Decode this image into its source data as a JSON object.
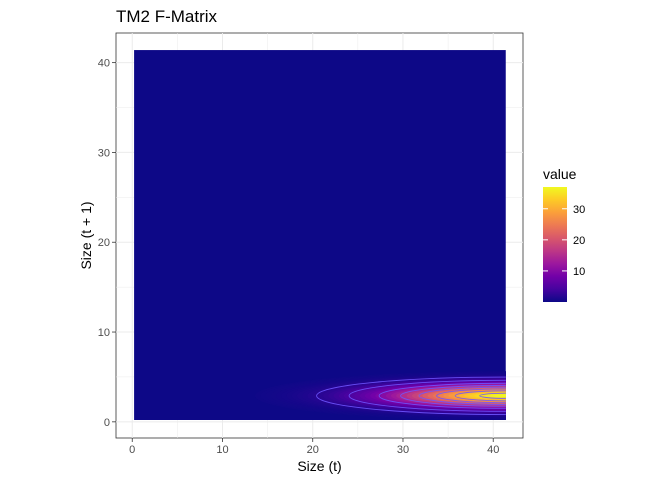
{
  "chart_data": {
    "type": "heatmap",
    "title": "TM2 F-Matrix",
    "xlabel": "Size (t)",
    "ylabel": "Size (t + 1)",
    "xlim": [
      -1.8,
      43.3
    ],
    "ylim": [
      -1.8,
      43.3
    ],
    "x_ticks": [
      0,
      10,
      20,
      30,
      40
    ],
    "y_ticks": [
      0,
      10,
      20,
      30,
      40
    ],
    "grid": true,
    "data_extent": {
      "x": [
        0.2,
        41.4
      ],
      "y": [
        0.2,
        41.4
      ]
    },
    "peak": {
      "x": 41.4,
      "y": 2.9,
      "value": 37
    },
    "background_value": 0,
    "contour_levels": [
      2,
      5,
      10,
      15,
      20,
      25,
      30,
      35
    ],
    "colorscale": "plasma",
    "colors": [
      "#0d0887",
      "#46039f",
      "#7201a8",
      "#9c179e",
      "#bd3786",
      "#d8576b",
      "#ed7953",
      "#fb9f3a",
      "#fdca26",
      "#f0f921"
    ],
    "contour_color": "#6f55ff",
    "legend": {
      "title": "value",
      "position": "right",
      "range": [
        0,
        37
      ],
      "ticks": [
        10,
        20,
        30
      ],
      "tick_labels": [
        "10",
        "20",
        "30"
      ]
    }
  }
}
